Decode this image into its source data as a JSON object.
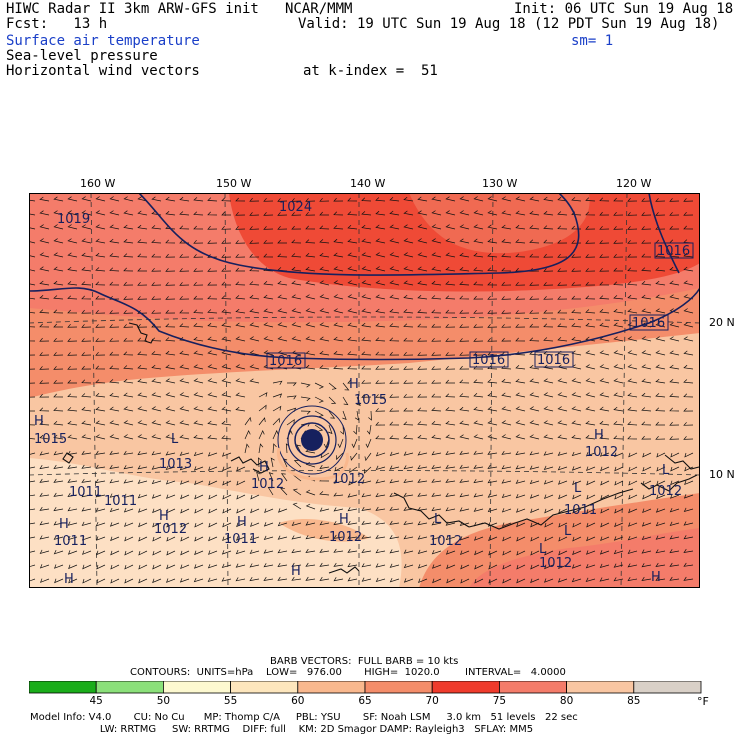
{
  "header": {
    "line1_left": "HIWC Radar II 3km ARW-GFS init",
    "line1_mid": "NCAR/MMM",
    "init": "Init: 06 UTC Sun 19 Aug 18",
    "fcst": "Fcst:   13 h",
    "valid": "Valid: 19 UTC Sun 19 Aug 18 (12 PDT Sun 19 Aug 18)",
    "field1": "Surface air temperature",
    "sm": "sm= 1",
    "field2": "Sea-level pressure",
    "field3": "Horizontal wind vectors",
    "kindex": "at k-index =  51"
  },
  "axes": {
    "lon_labels": [
      "160 W",
      "150 W",
      "140 W",
      "130 W",
      "120 W"
    ],
    "lat_labels": [
      "20 N",
      "10 N"
    ]
  },
  "map": {
    "region": "Eastern Pacific",
    "pressure_labels": [
      "1019",
      "1024",
      "1016",
      "1016",
      "1016",
      "1016",
      "1016",
      "1015",
      "1015",
      "1013",
      "1012",
      "1012",
      "1012",
      "1012",
      "1011",
      "1011",
      "1011",
      "1011",
      "1012",
      "1012",
      "1012",
      "1011",
      "1012"
    ],
    "hl_markers": [
      "H",
      "H",
      "L",
      "H",
      "H",
      "H",
      "H",
      "L",
      "L",
      "L",
      "H",
      "L",
      "L",
      "H",
      "H",
      "H",
      "H"
    ],
    "temperature_colors": {
      "45": "#1aad1a",
      "50": "#7fd66a",
      "55": "#fdf9d0",
      "60": "#fde0b5",
      "65": "#f9b88e",
      "70": "#f48d6a",
      "75": "#ef3b2c",
      "80": "#f47c6a",
      "85": "#f9c6a2",
      "90": "#d6cfc8"
    },
    "contour_color": "#16205e"
  },
  "footer": {
    "barb": "BARB VECTORS:  FULL BARB = 10 kts",
    "contours": "CONTOURS:  UNITS=hPa    LOW=   976.00       HIGH=  1020.0        INTERVAL=   4.0000",
    "colorbar_ticks": [
      "45",
      "50",
      "55",
      "60",
      "65",
      "70",
      "75",
      "80",
      "85"
    ],
    "colorbar_unit": "°F",
    "colorbar_colors": [
      "#1aad1a",
      "#8be07a",
      "#fdf9d0",
      "#fde6bd",
      "#f9b88e",
      "#f48d6a",
      "#ef3b2c",
      "#f47c6a",
      "#f9c6a2",
      "#d9d0c7"
    ],
    "info1": "Model Info: V4.0       CU: No Cu      MP: Thomp C/A     PBL: YSU       SF: Noah LSM     3.0 km   51 levels   22 sec",
    "info2": "                      LW: RRTMG     SW: RRTMG    DIFF: full    KM: 2D Smagor DAMP: Rayleigh3   SFLAY: MM5"
  }
}
